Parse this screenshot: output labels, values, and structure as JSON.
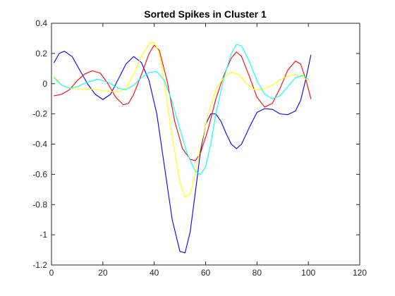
{
  "chart_data": {
    "type": "line",
    "title": "Sorted Spikes in Cluster 1",
    "xlabel": "",
    "ylabel": "",
    "xlim": [
      0,
      120
    ],
    "ylim": [
      -1.2,
      0.4
    ],
    "xticks": [
      0,
      20,
      40,
      60,
      80,
      100,
      120
    ],
    "yticks": [
      -1.2,
      -1,
      -0.8,
      -0.6,
      -0.4,
      -0.2,
      0,
      0.2,
      0.4
    ],
    "x_tick_labels": [
      "0",
      "20",
      "40",
      "60",
      "80",
      "100",
      "120"
    ],
    "y_tick_labels": [
      "-1.2",
      "-1",
      "-0.8",
      "-0.6",
      "-0.4",
      "-0.2",
      "0",
      "0.2",
      "0.4"
    ],
    "grid": false,
    "box": true,
    "series": [
      {
        "color": "#0000ff",
        "points": [
          [
            1,
            0.14
          ],
          [
            3,
            0.2
          ],
          [
            5,
            0.215
          ],
          [
            8,
            0.18
          ],
          [
            11,
            0.09
          ],
          [
            14,
            0.0
          ],
          [
            17,
            -0.07
          ],
          [
            20,
            -0.105
          ],
          [
            23,
            -0.07
          ],
          [
            26,
            0.03
          ],
          [
            29,
            0.13
          ],
          [
            32,
            0.18
          ],
          [
            35,
            0.14
          ],
          [
            38,
            0.02
          ],
          [
            41,
            -0.2
          ],
          [
            44,
            -0.55
          ],
          [
            47,
            -0.9
          ],
          [
            50,
            -1.11
          ],
          [
            52,
            -1.12
          ],
          [
            54,
            -0.98
          ],
          [
            56,
            -0.72
          ],
          [
            58,
            -0.45
          ],
          [
            60,
            -0.27
          ],
          [
            62,
            -0.2
          ],
          [
            64,
            -0.2
          ],
          [
            66,
            -0.25
          ],
          [
            68,
            -0.33
          ],
          [
            70,
            -0.4
          ],
          [
            72,
            -0.43
          ],
          [
            74,
            -0.4
          ],
          [
            77,
            -0.29
          ],
          [
            80,
            -0.19
          ],
          [
            83,
            -0.165
          ],
          [
            86,
            -0.17
          ],
          [
            89,
            -0.2
          ],
          [
            92,
            -0.205
          ],
          [
            95,
            -0.18
          ],
          [
            97,
            -0.11
          ],
          [
            99,
            0.03
          ],
          [
            101,
            0.19
          ]
        ]
      },
      {
        "color": "#ff0000",
        "points": [
          [
            1,
            -0.08
          ],
          [
            4,
            -0.07
          ],
          [
            7,
            -0.04
          ],
          [
            10,
            0.02
          ],
          [
            13,
            0.065
          ],
          [
            16,
            0.085
          ],
          [
            19,
            0.07
          ],
          [
            22,
            0.0
          ],
          [
            25,
            -0.09
          ],
          [
            28,
            -0.14
          ],
          [
            30,
            -0.13
          ],
          [
            32,
            -0.07
          ],
          [
            35,
            0.06
          ],
          [
            38,
            0.2
          ],
          [
            40,
            0.255
          ],
          [
            42,
            0.22
          ],
          [
            45,
            0.02
          ],
          [
            48,
            -0.25
          ],
          [
            51,
            -0.43
          ],
          [
            54,
            -0.5
          ],
          [
            56,
            -0.51
          ],
          [
            58,
            -0.46
          ],
          [
            61,
            -0.3
          ],
          [
            64,
            -0.1
          ],
          [
            67,
            0.05
          ],
          [
            70,
            0.17
          ],
          [
            72,
            0.21
          ],
          [
            74,
            0.18
          ],
          [
            77,
            0.05
          ],
          [
            80,
            -0.09
          ],
          [
            83,
            -0.155
          ],
          [
            86,
            -0.13
          ],
          [
            89,
            -0.03
          ],
          [
            92,
            0.09
          ],
          [
            95,
            0.15
          ],
          [
            97,
            0.13
          ],
          [
            99,
            0.03
          ],
          [
            101,
            -0.1
          ]
        ]
      },
      {
        "color": "#ffff00",
        "points": [
          [
            1,
            0.05
          ],
          [
            4,
            -0.01
          ],
          [
            7,
            -0.03
          ],
          [
            10,
            -0.035
          ],
          [
            14,
            -0.035
          ],
          [
            18,
            -0.04
          ],
          [
            22,
            -0.05
          ],
          [
            26,
            -0.055
          ],
          [
            29,
            -0.03
          ],
          [
            32,
            0.06
          ],
          [
            35,
            0.18
          ],
          [
            38,
            0.265
          ],
          [
            40,
            0.275
          ],
          [
            42,
            0.2
          ],
          [
            44,
            0.0
          ],
          [
            47,
            -0.35
          ],
          [
            50,
            -0.65
          ],
          [
            52,
            -0.75
          ],
          [
            54,
            -0.73
          ],
          [
            56,
            -0.6
          ],
          [
            58,
            -0.42
          ],
          [
            61,
            -0.2
          ],
          [
            64,
            -0.04
          ],
          [
            67,
            0.04
          ],
          [
            70,
            0.075
          ],
          [
            73,
            0.06
          ],
          [
            76,
            0.0
          ],
          [
            79,
            -0.04
          ],
          [
            82,
            -0.04
          ],
          [
            86,
            -0.01
          ],
          [
            90,
            0.035
          ],
          [
            94,
            0.06
          ],
          [
            97,
            0.055
          ],
          [
            100,
            0.02
          ]
        ]
      },
      {
        "color": "#00ffff",
        "points": [
          [
            1,
            0.04
          ],
          [
            4,
            -0.01
          ],
          [
            7,
            -0.03
          ],
          [
            10,
            -0.02
          ],
          [
            14,
            0.01
          ],
          [
            18,
            0.03
          ],
          [
            22,
            0.01
          ],
          [
            26,
            -0.03
          ],
          [
            29,
            -0.04
          ],
          [
            32,
            -0.01
          ],
          [
            35,
            0.04
          ],
          [
            38,
            0.075
          ],
          [
            41,
            0.08
          ],
          [
            44,
            0.02
          ],
          [
            47,
            -0.12
          ],
          [
            50,
            -0.3
          ],
          [
            53,
            -0.47
          ],
          [
            56,
            -0.58
          ],
          [
            58,
            -0.6
          ],
          [
            60,
            -0.55
          ],
          [
            62,
            -0.4
          ],
          [
            64,
            -0.2
          ],
          [
            67,
            0.03
          ],
          [
            70,
            0.2
          ],
          [
            72,
            0.26
          ],
          [
            74,
            0.25
          ],
          [
            77,
            0.15
          ],
          [
            80,
            0.02
          ],
          [
            83,
            -0.07
          ],
          [
            86,
            -0.1
          ],
          [
            89,
            -0.08
          ],
          [
            92,
            -0.02
          ],
          [
            95,
            0.04
          ],
          [
            98,
            0.055
          ],
          [
            100,
            0.03
          ]
        ]
      }
    ]
  }
}
